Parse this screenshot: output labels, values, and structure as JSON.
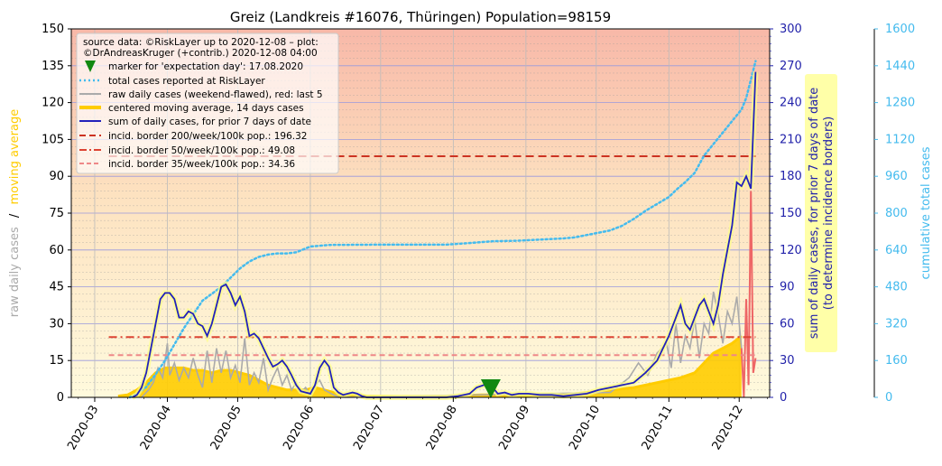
{
  "chart_data": {
    "type": "line",
    "title": "Greiz (Landkreis #16076, Thüringen) Population=98159",
    "x_ticks": [
      "2020-03",
      "2020-04",
      "2020-05",
      "2020-06",
      "2020-07",
      "2020-08",
      "2020-09",
      "2020-10",
      "2020-11",
      "2020-12"
    ],
    "xlim_days": [
      -10,
      288
    ],
    "left_axis": {
      "ylim": [
        0,
        150
      ],
      "ticks": [
        "0",
        "15",
        "30",
        "45",
        "60",
        "75",
        "90",
        "105",
        "120",
        "135",
        "150"
      ],
      "label_part1": "raw daily cases",
      "label_sep": "/",
      "label_part2": "moving average"
    },
    "right_axis1": {
      "ylim": [
        0,
        300
      ],
      "ticks": [
        "0",
        "30",
        "60",
        "90",
        "120",
        "150",
        "180",
        "210",
        "240",
        "270",
        "300"
      ],
      "label_line1": "sum of daily cases, for prior 7 days of date",
      "label_line2": "(to determine incidence borders)"
    },
    "right_axis2": {
      "ylim": [
        0,
        1600
      ],
      "ticks": [
        "0",
        "160",
        "320",
        "480",
        "640",
        "800",
        "960",
        "1120",
        "1280",
        "1440",
        "1600"
      ],
      "label": "cumulative total cases"
    },
    "legend": {
      "source_line1": "source data: ©RiskLayer up to 2020-12-08 – plot:",
      "source_line2": "©DrAndreasKruger (+contrib.) 2020-12-08 04:00",
      "entries": [
        "marker for 'expectation day': 17.08.2020",
        "total cases reported at RiskLayer",
        "raw daily cases (weekend-flawed), red: last 5",
        "centered moving average, 14 days cases",
        "sum of daily cases, for prior 7 days of date",
        "incid. border 200/week/100k pop.: 196.32",
        "incid. border 50/week/100k pop.: 49.08",
        "incid. border 35/week/100k pop.: 34.36"
      ]
    },
    "expectation_day": 169,
    "incidence_borders_7day_sum": [
      196.32,
      49.08,
      34.36
    ],
    "series": [
      {
        "name": "sum of daily cases, for prior 7 days of date",
        "axis": "right1",
        "color": "#2222bb",
        "points": [
          [
            16,
            0
          ],
          [
            18,
            2
          ],
          [
            20,
            8
          ],
          [
            22,
            20
          ],
          [
            24,
            40
          ],
          [
            26,
            60
          ],
          [
            28,
            80
          ],
          [
            30,
            85
          ],
          [
            32,
            85
          ],
          [
            34,
            80
          ],
          [
            36,
            65
          ],
          [
            38,
            65
          ],
          [
            40,
            70
          ],
          [
            42,
            68
          ],
          [
            44,
            60
          ],
          [
            46,
            58
          ],
          [
            48,
            50
          ],
          [
            50,
            60
          ],
          [
            52,
            75
          ],
          [
            54,
            90
          ],
          [
            56,
            92
          ],
          [
            58,
            85
          ],
          [
            60,
            75
          ],
          [
            62,
            82
          ],
          [
            64,
            70
          ],
          [
            66,
            50
          ],
          [
            68,
            52
          ],
          [
            70,
            48
          ],
          [
            72,
            40
          ],
          [
            74,
            32
          ],
          [
            76,
            25
          ],
          [
            78,
            27
          ],
          [
            80,
            30
          ],
          [
            82,
            25
          ],
          [
            84,
            18
          ],
          [
            86,
            10
          ],
          [
            88,
            5
          ],
          [
            90,
            4
          ],
          [
            92,
            3
          ],
          [
            94,
            10
          ],
          [
            96,
            24
          ],
          [
            98,
            30
          ],
          [
            100,
            25
          ],
          [
            102,
            8
          ],
          [
            104,
            4
          ],
          [
            106,
            2
          ],
          [
            108,
            3
          ],
          [
            110,
            4
          ],
          [
            112,
            3
          ],
          [
            114,
            1
          ],
          [
            116,
            0
          ],
          [
            130,
            0
          ],
          [
            140,
            0
          ],
          [
            150,
            0
          ],
          [
            155,
            1
          ],
          [
            160,
            3
          ],
          [
            163,
            8
          ],
          [
            166,
            10
          ],
          [
            169,
            10
          ],
          [
            172,
            3
          ],
          [
            175,
            4
          ],
          [
            178,
            2
          ],
          [
            181,
            3
          ],
          [
            185,
            3
          ],
          [
            190,
            2
          ],
          [
            195,
            2
          ],
          [
            200,
            1
          ],
          [
            205,
            2
          ],
          [
            210,
            3
          ],
          [
            215,
            6
          ],
          [
            220,
            8
          ],
          [
            225,
            10
          ],
          [
            230,
            12
          ],
          [
            235,
            20
          ],
          [
            240,
            30
          ],
          [
            245,
            50
          ],
          [
            248,
            65
          ],
          [
            250,
            75
          ],
          [
            252,
            60
          ],
          [
            254,
            55
          ],
          [
            256,
            65
          ],
          [
            258,
            75
          ],
          [
            260,
            80
          ],
          [
            262,
            70
          ],
          [
            264,
            60
          ],
          [
            266,
            75
          ],
          [
            268,
            100
          ],
          [
            270,
            120
          ],
          [
            272,
            140
          ],
          [
            274,
            175
          ],
          [
            276,
            172
          ],
          [
            278,
            180
          ],
          [
            280,
            170
          ],
          [
            282,
            265
          ]
        ]
      },
      {
        "name": "total cases reported at RiskLayer",
        "axis": "right2",
        "color": "#44bbee",
        "points": [
          [
            15,
            0
          ],
          [
            18,
            15
          ],
          [
            22,
            45
          ],
          [
            26,
            100
          ],
          [
            30,
            160
          ],
          [
            34,
            230
          ],
          [
            38,
            300
          ],
          [
            42,
            360
          ],
          [
            46,
            420
          ],
          [
            50,
            450
          ],
          [
            54,
            480
          ],
          [
            58,
            520
          ],
          [
            62,
            560
          ],
          [
            66,
            590
          ],
          [
            70,
            610
          ],
          [
            74,
            620
          ],
          [
            78,
            625
          ],
          [
            82,
            625
          ],
          [
            86,
            630
          ],
          [
            92,
            655
          ],
          [
            100,
            662
          ],
          [
            120,
            663
          ],
          [
            150,
            663
          ],
          [
            160,
            670
          ],
          [
            170,
            678
          ],
          [
            180,
            680
          ],
          [
            190,
            685
          ],
          [
            200,
            690
          ],
          [
            205,
            695
          ],
          [
            210,
            705
          ],
          [
            215,
            715
          ],
          [
            220,
            725
          ],
          [
            225,
            745
          ],
          [
            230,
            775
          ],
          [
            235,
            810
          ],
          [
            240,
            840
          ],
          [
            245,
            870
          ],
          [
            248,
            900
          ],
          [
            252,
            935
          ],
          [
            256,
            975
          ],
          [
            260,
            1050
          ],
          [
            264,
            1100
          ],
          [
            268,
            1150
          ],
          [
            272,
            1200
          ],
          [
            276,
            1250
          ],
          [
            278,
            1300
          ],
          [
            280,
            1380
          ],
          [
            282,
            1460
          ]
        ]
      },
      {
        "name": "centered moving average, 14 days cases",
        "axis": "left",
        "color": "#ffcc00",
        "points": [
          [
            10,
            0.5
          ],
          [
            14,
            1
          ],
          [
            18,
            3
          ],
          [
            22,
            6
          ],
          [
            26,
            10
          ],
          [
            30,
            12
          ],
          [
            34,
            12
          ],
          [
            38,
            12
          ],
          [
            42,
            11
          ],
          [
            46,
            11
          ],
          [
            50,
            10
          ],
          [
            54,
            11
          ],
          [
            58,
            11
          ],
          [
            62,
            10
          ],
          [
            66,
            9
          ],
          [
            70,
            7
          ],
          [
            74,
            5
          ],
          [
            78,
            4
          ],
          [
            82,
            3
          ],
          [
            86,
            3
          ],
          [
            90,
            3
          ],
          [
            94,
            4
          ],
          [
            98,
            3
          ],
          [
            102,
            2
          ],
          [
            106,
            1
          ],
          [
            110,
            1
          ],
          [
            116,
            0.5
          ],
          [
            130,
            0.3
          ],
          [
            150,
            0.5
          ],
          [
            165,
            1
          ],
          [
            170,
            1
          ],
          [
            180,
            1
          ],
          [
            200,
            1
          ],
          [
            210,
            2
          ],
          [
            220,
            3
          ],
          [
            230,
            4
          ],
          [
            240,
            6
          ],
          [
            250,
            8
          ],
          [
            256,
            10
          ],
          [
            260,
            14
          ],
          [
            264,
            18
          ],
          [
            268,
            20
          ],
          [
            272,
            22
          ],
          [
            276,
            25
          ]
        ]
      },
      {
        "name": "raw daily cases (weekend-flawed), red: last 5",
        "axis": "left",
        "color": "#aaaaaa",
        "points": [
          [
            20,
            0
          ],
          [
            23,
            3
          ],
          [
            25,
            6
          ],
          [
            27,
            12
          ],
          [
            29,
            8
          ],
          [
            31,
            22
          ],
          [
            32,
            9
          ],
          [
            34,
            14
          ],
          [
            36,
            7
          ],
          [
            38,
            12
          ],
          [
            40,
            8
          ],
          [
            42,
            16
          ],
          [
            44,
            9
          ],
          [
            46,
            4
          ],
          [
            48,
            19
          ],
          [
            50,
            6
          ],
          [
            52,
            20
          ],
          [
            54,
            10
          ],
          [
            56,
            19
          ],
          [
            58,
            8
          ],
          [
            60,
            13
          ],
          [
            62,
            6
          ],
          [
            64,
            24
          ],
          [
            66,
            5
          ],
          [
            68,
            10
          ],
          [
            70,
            6
          ],
          [
            72,
            16
          ],
          [
            74,
            3
          ],
          [
            76,
            8
          ],
          [
            78,
            12
          ],
          [
            80,
            5
          ],
          [
            82,
            9
          ],
          [
            84,
            3
          ],
          [
            86,
            6
          ],
          [
            88,
            2
          ],
          [
            90,
            4
          ],
          [
            92,
            1
          ],
          [
            94,
            5
          ],
          [
            96,
            7
          ],
          [
            98,
            3
          ],
          [
            100,
            2
          ],
          [
            102,
            1
          ],
          [
            104,
            0
          ],
          [
            220,
            2
          ],
          [
            224,
            5
          ],
          [
            228,
            8
          ],
          [
            232,
            14
          ],
          [
            236,
            9
          ],
          [
            240,
            18
          ],
          [
            244,
            22
          ],
          [
            246,
            12
          ],
          [
            248,
            30
          ],
          [
            250,
            14
          ],
          [
            252,
            25
          ],
          [
            254,
            20
          ],
          [
            256,
            32
          ],
          [
            258,
            16
          ],
          [
            260,
            30
          ],
          [
            262,
            26
          ],
          [
            264,
            43
          ],
          [
            266,
            34
          ],
          [
            268,
            22
          ],
          [
            270,
            35
          ],
          [
            272,
            30
          ],
          [
            274,
            41
          ],
          [
            276,
            20
          ]
        ]
      },
      {
        "name": "raw daily cases, last 5 (red)",
        "axis": "left",
        "color": "#ee6666",
        "points": [
          [
            276,
            20
          ],
          [
            277,
            0
          ],
          [
            278,
            40
          ],
          [
            279,
            5
          ],
          [
            280,
            84
          ],
          [
            281,
            10
          ],
          [
            282,
            16
          ]
        ]
      }
    ]
  }
}
